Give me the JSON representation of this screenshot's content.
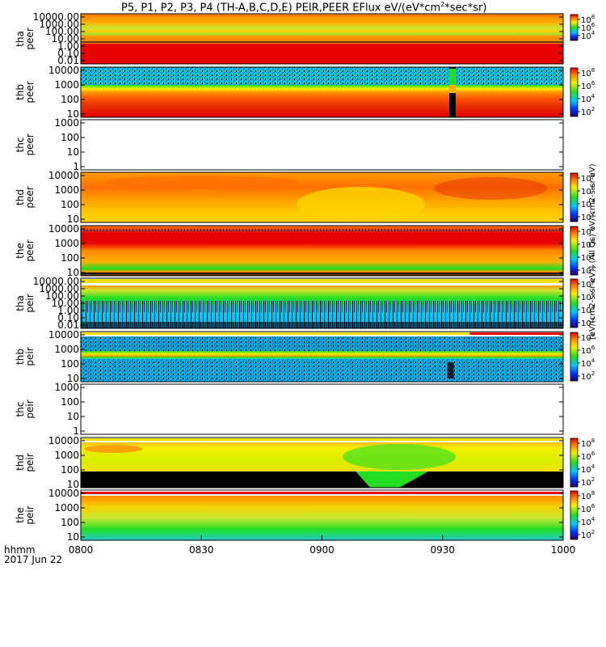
{
  "header": {
    "title": "P5, P1, P2, P3, P4 (TH-A,B,C,D,E) PEIR,PEER EFlux eV/(eV*cm",
    "title_sup": "2",
    "title_tail": "*sec*sr)"
  },
  "colorbar_label": "[eV/(cm2-s-sr-eV)] (All Qs) eV/(cm2-s-sr-eV)",
  "time_axis": {
    "hhmm_label": "hhmm",
    "date_label": "2017 Jun 22",
    "ticks": [
      "0800",
      "0830",
      "0900",
      "0930",
      "1000"
    ]
  },
  "colors": {
    "red": "#e60000",
    "orange": "#ff8c00",
    "yellow": "#f0e000",
    "green": "#22cc22",
    "cyan": "#00cccc",
    "blue": "#0033cc",
    "black": "#000000"
  },
  "chart_data": {
    "type": "heatmap",
    "x_range": [
      "0800",
      "1000"
    ],
    "colorbar_ticks": [
      "10^2",
      "10^4",
      "10^6",
      "10^8"
    ],
    "colorbar_ticks_top": [
      "10^4",
      "10^6",
      "10^8"
    ],
    "panels": [
      {
        "row1": "tha",
        "row2": "peer",
        "ticks": [
          "10000.00",
          "1000.00",
          "100.00",
          "10.00",
          "1.00",
          "0.10",
          "0.01"
        ],
        "colorbar": "top",
        "style": "tha_peer"
      },
      {
        "row1": "thb",
        "row2": "peer",
        "ticks": [
          "10000",
          "1000",
          "100",
          "10"
        ],
        "colorbar": "full",
        "style": "thb_peer"
      },
      {
        "row1": "thc",
        "row2": "peer",
        "ticks": [
          "1000",
          "100",
          "10",
          "1"
        ],
        "colorbar": "none",
        "style": "empty"
      },
      {
        "row1": "thd",
        "row2": "peer",
        "ticks": [
          "10000",
          "1000",
          "100",
          "10"
        ],
        "colorbar": "full",
        "style": "thd_peer"
      },
      {
        "row1": "the",
        "row2": "peer",
        "ticks": [
          "10000",
          "1000",
          "100",
          "10"
        ],
        "colorbar": "full",
        "style": "the_peer"
      },
      {
        "row1": "tha",
        "row2": "peir",
        "ticks": [
          "10000.00",
          "1000.00",
          "100.00",
          "10.00",
          "1.00",
          "0.10",
          "0.01"
        ],
        "colorbar": "full",
        "style": "tha_peir"
      },
      {
        "row1": "thb",
        "row2": "peir",
        "ticks": [
          "10000",
          "1000",
          "100",
          "10"
        ],
        "colorbar": "full",
        "style": "thb_peir"
      },
      {
        "row1": "thc",
        "row2": "peir",
        "ticks": [
          "1000",
          "100",
          "10",
          "1"
        ],
        "colorbar": "none",
        "style": "empty"
      },
      {
        "row1": "thd",
        "row2": "peir",
        "ticks": [
          "10000",
          "1000",
          "100",
          "10"
        ],
        "colorbar": "full",
        "style": "thd_peir"
      },
      {
        "row1": "the",
        "row2": "peir",
        "ticks": [
          "10000",
          "1000",
          "100",
          "10"
        ],
        "colorbar": "full",
        "style": "the_peir"
      }
    ]
  }
}
